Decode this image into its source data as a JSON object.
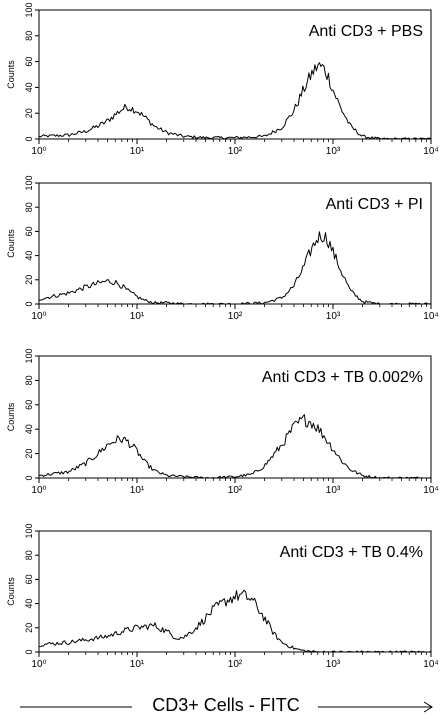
{
  "figure": {
    "xlabel": "CD3+ Cells - FITC"
  },
  "chart_data": [
    {
      "type": "line",
      "title": "Anti CD3 + PBS",
      "ylabel": "Counts",
      "xscale": "log",
      "xlim": [
        1,
        10000
      ],
      "ylim": [
        0,
        100
      ],
      "x_ticks": [
        "10⁰",
        "10¹",
        "10²",
        "10³",
        "10⁴"
      ],
      "y_ticks": [
        "0",
        "20",
        "40",
        "60",
        "80",
        "100"
      ],
      "peaks": [
        {
          "center": 8,
          "height": 25
        },
        {
          "center": 700,
          "height": 57
        }
      ],
      "series": [
        {
          "x": [
            1,
            2,
            3,
            4,
            5,
            6,
            7,
            8,
            10,
            12,
            15,
            20,
            30,
            50,
            100,
            200,
            300,
            400,
            500,
            600,
            700,
            800,
            900,
            1000,
            1200,
            1500,
            2000,
            3000,
            10000
          ],
          "values": [
            2,
            3,
            6,
            10,
            14,
            19,
            23,
            25,
            22,
            17,
            10,
            5,
            2,
            1,
            1,
            2,
            9,
            22,
            38,
            50,
            57,
            55,
            48,
            38,
            24,
            10,
            2,
            0,
            0
          ]
        }
      ]
    },
    {
      "type": "line",
      "title": "Anti CD3 + PI",
      "ylabel": "Counts",
      "xscale": "log",
      "xlim": [
        1,
        10000
      ],
      "ylim": [
        0,
        100
      ],
      "x_ticks": [
        "10⁰",
        "10¹",
        "10²",
        "10³",
        "10⁴"
      ],
      "y_ticks": [
        "0",
        "20",
        "40",
        "60",
        "80",
        "100"
      ],
      "peaks": [
        {
          "center": 5,
          "height": 19
        },
        {
          "center": 750,
          "height": 57
        }
      ],
      "series": [
        {
          "x": [
            1,
            2,
            3,
            4,
            5,
            6,
            7,
            8,
            10,
            12,
            15,
            20,
            30,
            50,
            100,
            200,
            300,
            400,
            500,
            600,
            700,
            800,
            900,
            1000,
            1200,
            1500,
            2000,
            3000,
            10000
          ],
          "values": [
            4,
            9,
            14,
            17,
            19,
            18,
            15,
            11,
            6,
            3,
            1,
            1,
            0,
            0,
            0,
            1,
            5,
            15,
            30,
            45,
            55,
            57,
            52,
            43,
            28,
            11,
            2,
            0,
            0
          ]
        }
      ]
    },
    {
      "type": "line",
      "title": "Anti CD3 + TB 0.002%",
      "ylabel": "Counts",
      "xscale": "log",
      "xlim": [
        1,
        10000
      ],
      "ylim": [
        0,
        100
      ],
      "x_ticks": [
        "10⁰",
        "10¹",
        "10²",
        "10³",
        "10⁴"
      ],
      "y_ticks": [
        "0",
        "20",
        "40",
        "60",
        "80",
        "100"
      ],
      "peaks": [
        {
          "center": 7,
          "height": 32
        },
        {
          "center": 500,
          "height": 48
        }
      ],
      "series": [
        {
          "x": [
            1,
            2,
            3,
            4,
            5,
            6,
            7,
            8,
            10,
            12,
            15,
            20,
            30,
            50,
            100,
            150,
            200,
            300,
            400,
            500,
            600,
            700,
            800,
            1000,
            1200,
            1500,
            2000,
            3000,
            10000
          ],
          "values": [
            2,
            5,
            12,
            20,
            27,
            31,
            32,
            30,
            22,
            13,
            6,
            2,
            1,
            0,
            1,
            3,
            10,
            27,
            42,
            48,
            46,
            41,
            35,
            24,
            15,
            7,
            2,
            0,
            0
          ]
        }
      ]
    },
    {
      "type": "line",
      "title": "Anti CD3 + TB 0.4%",
      "ylabel": "Counts",
      "xscale": "log",
      "xlim": [
        1,
        10000
      ],
      "ylim": [
        0,
        100
      ],
      "x_ticks": [
        "10⁰",
        "10¹",
        "10²",
        "10³",
        "10⁴"
      ],
      "y_ticks": [
        "0",
        "20",
        "40",
        "60",
        "80",
        "100"
      ],
      "peaks": [
        {
          "center": 15,
          "height": 22
        },
        {
          "center": 120,
          "height": 47
        }
      ],
      "series": [
        {
          "x": [
            1,
            2,
            3,
            5,
            7,
            10,
            15,
            20,
            25,
            30,
            40,
            50,
            60,
            80,
            100,
            120,
            150,
            200,
            250,
            300,
            400,
            500,
            700,
            1000,
            2000,
            10000
          ],
          "values": [
            6,
            8,
            10,
            13,
            17,
            20,
            22,
            17,
            12,
            12,
            20,
            28,
            35,
            42,
            46,
            47,
            43,
            28,
            15,
            8,
            3,
            1,
            0,
            0,
            0,
            0
          ]
        }
      ]
    }
  ]
}
